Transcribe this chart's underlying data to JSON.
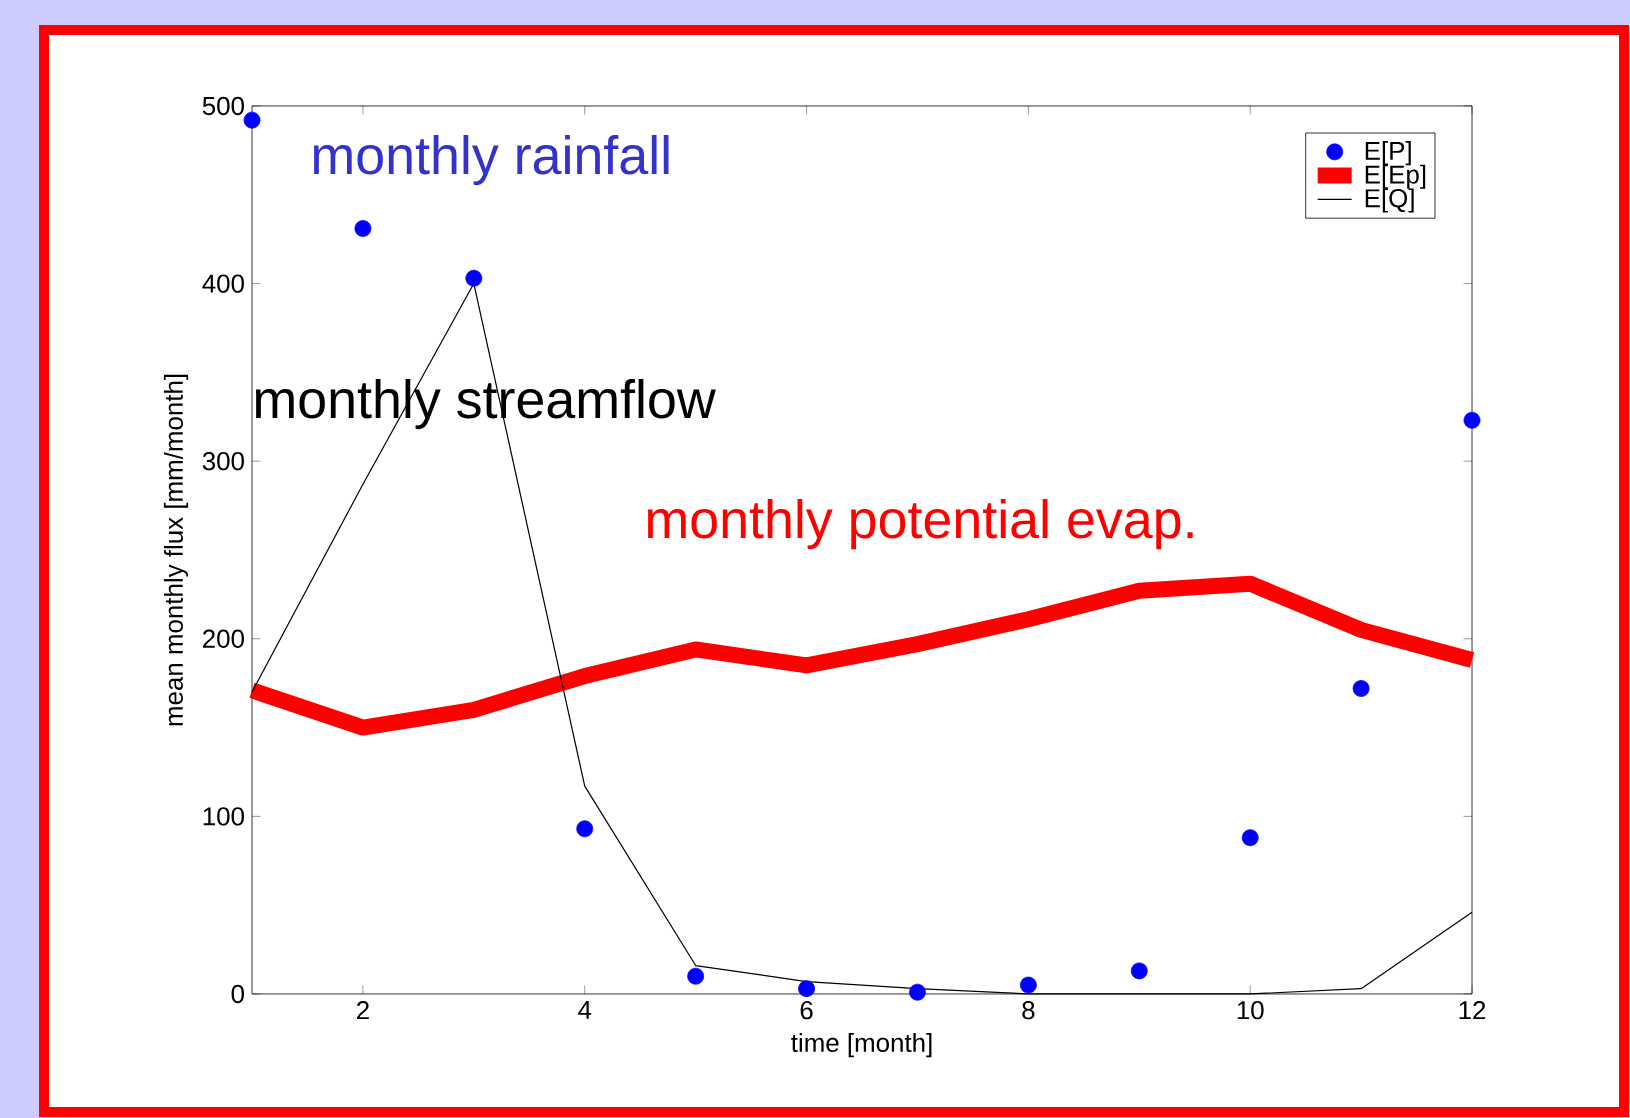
{
  "chart_data": {
    "type": "line",
    "xlabel": "time [month]",
    "ylabel": "mean monthly flux [mm/month]",
    "x": [
      1,
      2,
      3,
      4,
      5,
      6,
      7,
      8,
      9,
      10,
      11,
      12
    ],
    "series": [
      {
        "name": "E[P]",
        "type": "scatter",
        "color": "#0000ff",
        "marker": "circle",
        "values": [
          492,
          431,
          403,
          93,
          10,
          3,
          1,
          5,
          13,
          88,
          172,
          323
        ]
      },
      {
        "name": "E[Ep]",
        "color": "#ff0000",
        "values": [
          171,
          150,
          160,
          179,
          194,
          185,
          197,
          211,
          227,
          231,
          205,
          188
        ]
      },
      {
        "name": "E[Q]",
        "color": "#000000",
        "values": [
          170,
          287,
          400,
          117,
          16,
          7,
          3,
          0,
          0,
          0,
          3,
          46
        ]
      }
    ],
    "annotations": [
      "monthly rainfall",
      "monthly potential evap.",
      "monthly streamflow"
    ],
    "xlim": [
      1,
      12
    ],
    "ylim": [
      0,
      500
    ],
    "xticks": [
      2,
      4,
      6,
      8,
      10,
      12
    ],
    "yticks": [
      0,
      100,
      200,
      300,
      400,
      500
    ],
    "legend": "top right",
    "grid": false
  }
}
